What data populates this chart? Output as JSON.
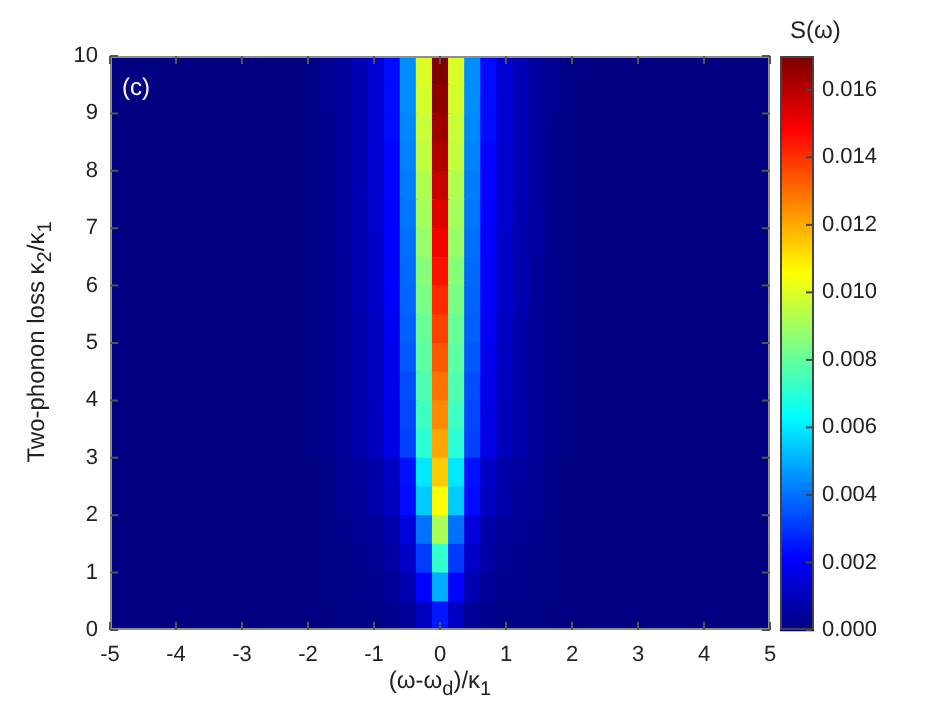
{
  "chart_data": {
    "type": "heatmap",
    "xlabel": "(ω-ω$_{d}$)/κ$_{1}$",
    "ylabel": "Two-phonon loss κ$_{2}$/κ$_{1}$",
    "clabel": "S(ω)",
    "annotations": [
      "(c)"
    ],
    "xlim": [
      -5,
      5
    ],
    "xticks": [
      -5,
      -4,
      -3,
      -2,
      -1,
      0,
      1,
      2,
      3,
      4,
      5
    ],
    "ylim": [
      0,
      10
    ],
    "yticks": [
      0,
      1,
      2,
      3,
      4,
      5,
      6,
      7,
      8,
      9,
      10
    ],
    "clim": [
      0,
      0.017
    ],
    "cticks": [
      {
        "value": 0,
        "label": "0.000"
      },
      0.002,
      0.004,
      0.006,
      0.008,
      {
        "value": 0.01,
        "label": "0.010"
      },
      0.012,
      0.014,
      0.016
    ],
    "x": [
      -4.878,
      -4.634,
      -4.39,
      -4.146,
      -3.902,
      -3.659,
      -3.415,
      -3.171,
      -2.927,
      -2.683,
      -2.439,
      -2.195,
      -1.951,
      -1.707,
      -1.463,
      -1.22,
      -0.976,
      -0.732,
      -0.488,
      -0.244,
      0,
      0.244,
      0.488,
      0.732,
      0.976,
      1.22,
      1.463,
      1.707,
      1.951,
      2.195,
      2.439,
      2.683,
      2.927,
      3.171,
      3.415,
      3.659,
      3.902,
      4.146,
      4.39,
      4.634,
      4.878
    ],
    "y": [
      9.75,
      9.25,
      8.75,
      8.25,
      7.75,
      7.25,
      6.75,
      6.25,
      5.75,
      5.25,
      4.75,
      4.25,
      3.75,
      3.25,
      2.75,
      2.25,
      1.75,
      1.25,
      0.75,
      0.25
    ],
    "cells": [
      [
        0,
        0,
        0,
        0,
        0,
        0,
        0,
        0,
        0,
        0,
        0,
        0,
        0.0001,
        0.0003,
        0.0005,
        0.0009,
        0.0014,
        0.0023,
        0.0045,
        0.01,
        0.017,
        0.01,
        0.0045,
        0.0023,
        0.0014,
        0.0009,
        0.0005,
        0.0003,
        0.0001,
        0,
        0,
        0,
        0,
        0,
        0,
        0,
        0,
        0,
        0,
        0,
        0
      ],
      [
        0,
        0,
        0,
        0,
        0,
        0,
        0,
        0,
        0,
        0,
        0,
        0,
        0.0001,
        0.0003,
        0.0005,
        0.0009,
        0.0014,
        0.0023,
        0.0045,
        0.0099,
        0.0168,
        0.0099,
        0.0045,
        0.0023,
        0.0014,
        0.0009,
        0.0005,
        0.0003,
        0.0001,
        0,
        0,
        0,
        0,
        0,
        0,
        0,
        0,
        0,
        0,
        0,
        0
      ],
      [
        0,
        0,
        0,
        0,
        0,
        0,
        0,
        0,
        0,
        0,
        0,
        0,
        0.0001,
        0.0002,
        0.0005,
        0.0009,
        0.0014,
        0.0023,
        0.0044,
        0.0097,
        0.0165,
        0.0097,
        0.0044,
        0.0023,
        0.0014,
        0.0009,
        0.0005,
        0.0002,
        0.0001,
        0,
        0,
        0,
        0,
        0,
        0,
        0,
        0,
        0,
        0,
        0,
        0
      ],
      [
        0,
        0,
        0,
        0,
        0,
        0,
        0,
        0,
        0,
        0,
        0,
        0,
        0.0001,
        0.0002,
        0.0005,
        0.0009,
        0.0013,
        0.0022,
        0.0043,
        0.0096,
        0.0162,
        0.0096,
        0.0043,
        0.0022,
        0.0013,
        0.0009,
        0.0005,
        0.0002,
        0.0001,
        0,
        0,
        0,
        0,
        0,
        0,
        0,
        0,
        0,
        0,
        0,
        0
      ],
      [
        0,
        0,
        0,
        0,
        0,
        0,
        0,
        0,
        0,
        0,
        0,
        0,
        0.0001,
        0.0002,
        0.0005,
        0.0009,
        0.0013,
        0.0022,
        0.0042,
        0.0093,
        0.0158,
        0.0093,
        0.0042,
        0.0022,
        0.0013,
        0.0009,
        0.0005,
        0.0002,
        0.0001,
        0,
        0,
        0,
        0,
        0,
        0,
        0,
        0,
        0,
        0,
        0,
        0
      ],
      [
        0,
        0,
        0,
        0,
        0,
        0,
        0,
        0,
        0,
        0,
        0,
        0,
        0.0001,
        0.0002,
        0.0005,
        0.0008,
        0.0013,
        0.0021,
        0.0041,
        0.0091,
        0.0154,
        0.0091,
        0.0041,
        0.0021,
        0.0013,
        0.0008,
        0.0005,
        0.0002,
        0.0001,
        0,
        0,
        0,
        0,
        0,
        0,
        0,
        0,
        0,
        0,
        0,
        0
      ],
      [
        0,
        0,
        0,
        0,
        0,
        0,
        0,
        0,
        0,
        0,
        0,
        0,
        0.0001,
        0.0002,
        0.0005,
        0.0008,
        0.0012,
        0.0021,
        0.004,
        0.0089,
        0.015,
        0.0089,
        0.004,
        0.0021,
        0.0012,
        0.0008,
        0.0005,
        0.0002,
        0.0001,
        0,
        0,
        0,
        0,
        0,
        0,
        0,
        0,
        0,
        0,
        0,
        0
      ],
      [
        0,
        0,
        0,
        0,
        0,
        0,
        0,
        0,
        0,
        0,
        0,
        0,
        0.0001,
        0.0002,
        0.0004,
        0.0008,
        0.0012,
        0.002,
        0.0039,
        0.0086,
        0.0146,
        0.0086,
        0.0039,
        0.002,
        0.0012,
        0.0008,
        0.0004,
        0.0002,
        0.0001,
        0,
        0,
        0,
        0,
        0,
        0,
        0,
        0,
        0,
        0,
        0,
        0
      ],
      [
        0,
        0,
        0,
        0,
        0,
        0,
        0,
        0,
        0,
        0,
        0,
        0,
        0.0001,
        0.0002,
        0.0004,
        0.0008,
        0.0012,
        0.002,
        0.0038,
        0.0084,
        0.0142,
        0.0084,
        0.0038,
        0.002,
        0.0012,
        0.0008,
        0.0004,
        0.0002,
        0.0001,
        0,
        0,
        0,
        0,
        0,
        0,
        0,
        0,
        0,
        0,
        0,
        0
      ],
      [
        0,
        0,
        0,
        0,
        0,
        0,
        0,
        0,
        0,
        0,
        0,
        0,
        0.0001,
        0.0002,
        0.0004,
        0.0007,
        0.0011,
        0.0019,
        0.0037,
        0.0081,
        0.0138,
        0.0081,
        0.0037,
        0.0019,
        0.0011,
        0.0007,
        0.0004,
        0.0002,
        0.0001,
        0,
        0,
        0,
        0,
        0,
        0,
        0,
        0,
        0,
        0,
        0,
        0
      ],
      [
        0,
        0,
        0,
        0,
        0,
        0,
        0,
        0,
        0,
        0,
        0,
        0,
        0.0001,
        0.0002,
        0.0004,
        0.0007,
        0.0011,
        0.0018,
        0.0036,
        0.0079,
        0.0134,
        0.0079,
        0.0036,
        0.0018,
        0.0011,
        0.0007,
        0.0004,
        0.0002,
        0.0001,
        0,
        0,
        0,
        0,
        0,
        0,
        0,
        0,
        0,
        0,
        0,
        0
      ],
      [
        0,
        0,
        0,
        0,
        0,
        0,
        0,
        0,
        0,
        0,
        0,
        0,
        0.0001,
        0.0002,
        0.0004,
        0.0007,
        0.0011,
        0.0018,
        0.0034,
        0.0077,
        0.013,
        0.0077,
        0.0034,
        0.0018,
        0.0011,
        0.0007,
        0.0004,
        0.0002,
        0.0001,
        0,
        0,
        0,
        0,
        0,
        0,
        0,
        0,
        0,
        0,
        0,
        0
      ],
      [
        0,
        0,
        0,
        0,
        0,
        0,
        0,
        0,
        0,
        0,
        0,
        0,
        0.0001,
        0.0002,
        0.0004,
        0.0007,
        0.001,
        0.0017,
        0.0033,
        0.0074,
        0.0126,
        0.0074,
        0.0033,
        0.0017,
        0.001,
        0.0007,
        0.0004,
        0.0002,
        0.0001,
        0,
        0,
        0,
        0,
        0,
        0,
        0,
        0,
        0,
        0,
        0,
        0
      ],
      [
        0,
        0,
        0,
        0,
        0,
        0,
        0,
        0,
        0,
        0,
        0,
        0,
        0.0001,
        0.0002,
        0.0004,
        0.0007,
        0.001,
        0.0017,
        0.0032,
        0.0071,
        0.0121,
        0.0071,
        0.0032,
        0.0017,
        0.001,
        0.0007,
        0.0004,
        0.0002,
        0.0001,
        0,
        0,
        0,
        0,
        0,
        0,
        0,
        0,
        0,
        0,
        0,
        0
      ],
      [
        0,
        0,
        0,
        0,
        0,
        0,
        0,
        0,
        0,
        0,
        0,
        0,
        0,
        0.0001,
        0.0003,
        0.0005,
        0.0007,
        0.0012,
        0.0024,
        0.006,
        0.0115,
        0.006,
        0.0024,
        0.0012,
        0.0007,
        0.0005,
        0.0003,
        0.0001,
        0,
        0,
        0,
        0,
        0,
        0,
        0,
        0,
        0,
        0,
        0,
        0,
        0
      ],
      [
        0,
        0,
        0,
        0,
        0,
        0,
        0,
        0,
        0,
        0,
        0,
        0,
        0,
        0.0001,
        0.0003,
        0.0004,
        0.0007,
        0.0011,
        0.0023,
        0.0055,
        0.0106,
        0.0055,
        0.0023,
        0.0011,
        0.0007,
        0.0004,
        0.0003,
        0.0001,
        0,
        0,
        0,
        0,
        0,
        0,
        0,
        0,
        0,
        0,
        0,
        0,
        0
      ],
      [
        0,
        0,
        0,
        0,
        0,
        0,
        0,
        0,
        0,
        0,
        0,
        0,
        0,
        0.0001,
        0.0002,
        0.0003,
        0.0004,
        0.0007,
        0.0015,
        0.004,
        0.0092,
        0.004,
        0.0015,
        0.0007,
        0.0004,
        0.0003,
        0.0002,
        0.0001,
        0,
        0,
        0,
        0,
        0,
        0,
        0,
        0,
        0,
        0,
        0,
        0,
        0
      ],
      [
        0,
        0,
        0,
        0,
        0,
        0,
        0,
        0,
        0,
        0,
        0,
        0,
        0,
        0.0001,
        0.0001,
        0.0002,
        0.0003,
        0.0006,
        0.0012,
        0.0031,
        0.0072,
        0.0031,
        0.0012,
        0.0006,
        0.0003,
        0.0002,
        0.0001,
        0.0001,
        0,
        0,
        0,
        0,
        0,
        0,
        0,
        0,
        0,
        0,
        0,
        0,
        0
      ],
      [
        0,
        0,
        0,
        0,
        0,
        0,
        0,
        0,
        0,
        0,
        0,
        0,
        0,
        0.0001,
        0.0001,
        0.0002,
        0.0002,
        0.0004,
        0.0008,
        0.0022,
        0.005,
        0.0022,
        0.0008,
        0.0004,
        0.0002,
        0.0002,
        0.0001,
        0.0001,
        0,
        0,
        0,
        0,
        0,
        0,
        0,
        0,
        0,
        0,
        0,
        0,
        0
      ],
      [
        0,
        0,
        0,
        0,
        0,
        0,
        0,
        0,
        0,
        0,
        0,
        0,
        0,
        0,
        0.0001,
        0.0001,
        0.0001,
        0.0002,
        0.0004,
        0.0011,
        0.0025,
        0.0011,
        0.0004,
        0.0002,
        0.0001,
        0.0001,
        0.0001,
        0,
        0,
        0,
        0,
        0,
        0,
        0,
        0,
        0,
        0,
        0,
        0,
        0,
        0
      ]
    ]
  }
}
